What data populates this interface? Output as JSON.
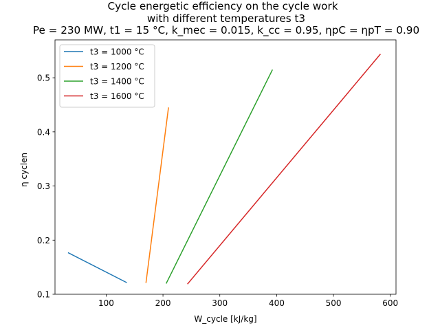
{
  "chart_data": {
    "type": "line",
    "title_lines": [
      "Cycle energetic efficiency on the cycle work",
      "with different temperatures t3",
      "Pe = 230 MW, t1 = 15 °C, k_mec = 0.015, k_cc = 0.95, ηpC = ηpT = 0.90"
    ],
    "xlabel": "W_cycle [kJ/kg]",
    "ylabel": "η cyclen",
    "xlim": [
      10,
      610
    ],
    "ylim": [
      0.1,
      0.57
    ],
    "xticks": [
      100,
      200,
      300,
      400,
      500,
      600
    ],
    "xtick_labels": [
      "100",
      "200",
      "300",
      "400",
      "500",
      "600"
    ],
    "yticks": [
      0.1,
      0.2,
      0.3,
      0.4,
      0.5
    ],
    "ytick_labels": [
      "0.1",
      "0.2",
      "0.3",
      "0.4",
      "0.5"
    ],
    "grid": false,
    "legend_position": "upper-left",
    "series": [
      {
        "name": "t3 = 1000 °C",
        "color": "#1f77b4",
        "x": [
          33.7,
          135.6
        ],
        "y": [
          0.1765,
          0.1218
        ]
      },
      {
        "name": "t3 = 1200 °C",
        "color": "#ff7f0e",
        "x": [
          170.2,
          209.6
        ],
        "y": [
          0.1218,
          0.4442
        ]
      },
      {
        "name": "t3 = 1400 °C",
        "color": "#2ca02c",
        "x": [
          206.0,
          392.3
        ],
        "y": [
          0.1206,
          0.5141
        ]
      },
      {
        "name": "t3 = 1600 °C",
        "color": "#d62728",
        "x": [
          243.6,
          582.0
        ],
        "y": [
          0.1194,
          0.5431
        ]
      }
    ]
  }
}
